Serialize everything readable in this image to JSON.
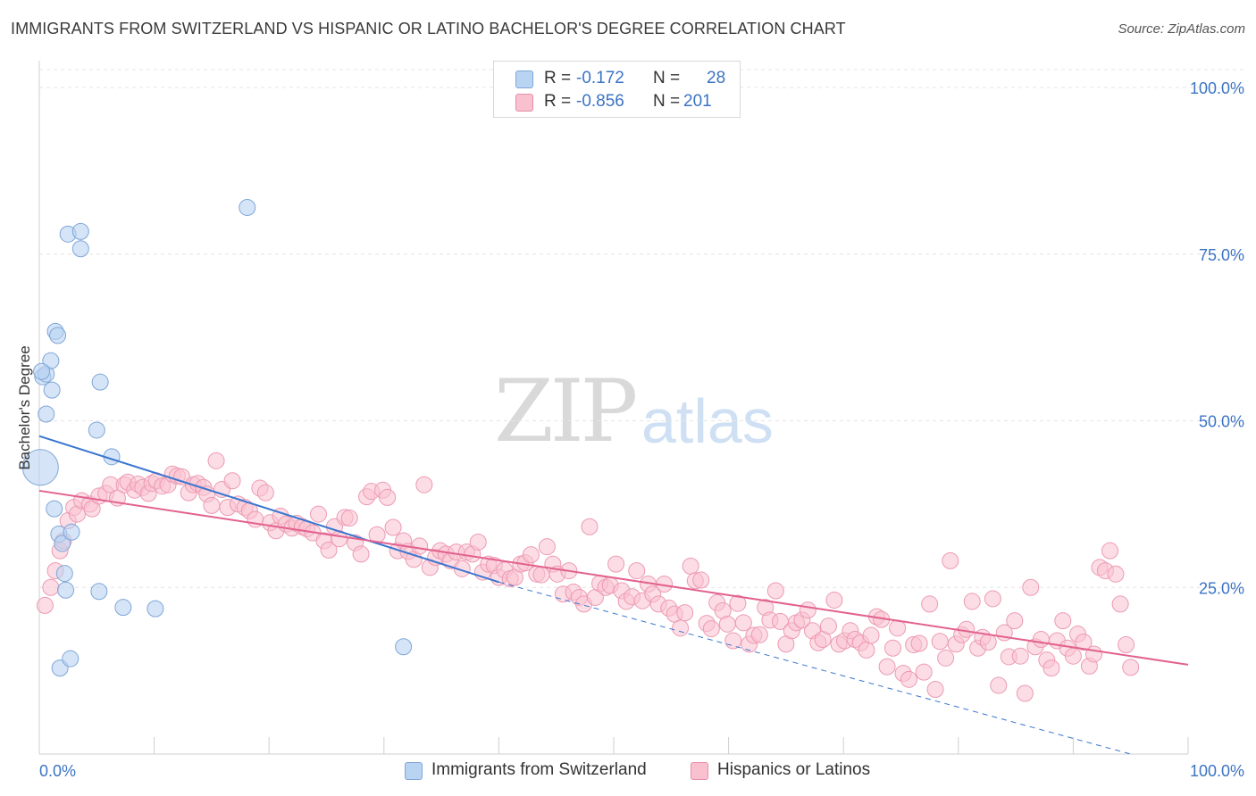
{
  "header": {
    "title": "IMMIGRANTS FROM SWITZERLAND VS HISPANIC OR LATINO BACHELOR'S DEGREE CORRELATION CHART",
    "source": "Source: ZipAtlas.com"
  },
  "watermark": {
    "zip": "ZIP",
    "atlas": "atlas"
  },
  "legend": {
    "rows": [
      {
        "r_label": "R =",
        "r_value": "-0.172",
        "n_label": "N =",
        "n_value": "28"
      },
      {
        "r_label": "R =",
        "r_value": "-0.856",
        "n_label": "N =",
        "n_value": "201"
      }
    ]
  },
  "bottom_legend": {
    "series1": "Immigrants from Switzerland",
    "series2": "Hispanics or Latinos"
  },
  "colors": {
    "blue_fill": "#b9d3f2",
    "blue_stroke": "#7fa6d8",
    "blue_line": "#3a76cf",
    "pink_fill": "#f9c1d0",
    "pink_stroke": "#ec9ab3",
    "pink_line": "#e2628f",
    "tick_label": "#3b74c4",
    "grid": "#e4e4e4"
  },
  "chart_data": {
    "type": "scatter",
    "title": "IMMIGRANTS FROM SWITZERLAND VS HISPANIC OR LATINO BACHELOR'S DEGREE CORRELATION CHART",
    "xlabel": "",
    "ylabel": "Bachelor's Degree",
    "xlim": [
      0,
      100
    ],
    "ylim": [
      0,
      100
    ],
    "x_tick_labels": [
      "0.0%",
      "100.0%"
    ],
    "y_ticks": [
      25,
      50,
      75,
      100
    ],
    "y_tick_labels": [
      "25.0%",
      "50.0%",
      "75.0%",
      "100.0%"
    ],
    "grid": true,
    "legend_position": "top-center",
    "series": [
      {
        "name": "Immigrants from Switzerland",
        "color": "#b9d3f2",
        "r": -0.172,
        "n": 28,
        "trend": {
          "x": [
            0,
            40
          ],
          "y": [
            47.7,
            25.8
          ],
          "extended_to": [
            95,
            0
          ]
        },
        "points": [
          [
            0.1,
            43.0
          ],
          [
            0.3,
            56.6
          ],
          [
            0.6,
            57.0
          ],
          [
            0.6,
            51.0
          ],
          [
            1.0,
            59.0
          ],
          [
            1.1,
            54.6
          ],
          [
            1.4,
            63.4
          ],
          [
            1.6,
            62.8
          ],
          [
            1.3,
            36.8
          ],
          [
            1.7,
            33.0
          ],
          [
            1.8,
            12.9
          ],
          [
            2.0,
            31.6
          ],
          [
            2.2,
            27.1
          ],
          [
            2.3,
            24.6
          ],
          [
            2.5,
            78.0
          ],
          [
            2.7,
            14.3
          ],
          [
            2.8,
            33.3
          ],
          [
            3.6,
            78.4
          ],
          [
            3.6,
            75.8
          ],
          [
            5.0,
            48.6
          ],
          [
            5.3,
            55.8
          ],
          [
            5.2,
            24.4
          ],
          [
            6.3,
            44.6
          ],
          [
            7.3,
            22.0
          ],
          [
            10.1,
            21.8
          ],
          [
            18.1,
            82.0
          ],
          [
            31.7,
            16.1
          ],
          [
            0.2,
            57.4
          ]
        ]
      },
      {
        "name": "Hispanics or Latinos",
        "color": "#f9c1d0",
        "r": -0.856,
        "n": 201,
        "trend": {
          "x": [
            0,
            100
          ],
          "y": [
            39.5,
            13.4
          ]
        },
        "points": [
          [
            0.5,
            22.3
          ],
          [
            1.0,
            25.0
          ],
          [
            1.4,
            27.5
          ],
          [
            1.8,
            30.5
          ],
          [
            2.1,
            32.0
          ],
          [
            2.5,
            35.0
          ],
          [
            3.0,
            37.0
          ],
          [
            3.3,
            36.0
          ],
          [
            3.7,
            38.0
          ],
          [
            4.4,
            37.5
          ],
          [
            4.6,
            36.8
          ],
          [
            5.2,
            38.7
          ],
          [
            5.8,
            39.1
          ],
          [
            6.2,
            40.4
          ],
          [
            6.8,
            38.4
          ],
          [
            7.4,
            40.4
          ],
          [
            7.7,
            40.8
          ],
          [
            8.3,
            39.6
          ],
          [
            8.6,
            40.5
          ],
          [
            9.0,
            40.0
          ],
          [
            9.5,
            39.1
          ],
          [
            9.8,
            40.6
          ],
          [
            10.2,
            41.0
          ],
          [
            10.7,
            40.2
          ],
          [
            11.2,
            40.4
          ],
          [
            11.6,
            42.0
          ],
          [
            12.0,
            41.7
          ],
          [
            12.4,
            41.6
          ],
          [
            13.0,
            39.2
          ],
          [
            13.4,
            40.4
          ],
          [
            13.8,
            40.6
          ],
          [
            14.3,
            40.0
          ],
          [
            14.6,
            39.0
          ],
          [
            15.0,
            37.3
          ],
          [
            15.4,
            44.0
          ],
          [
            15.9,
            39.7
          ],
          [
            16.4,
            37.0
          ],
          [
            16.8,
            41.0
          ],
          [
            17.3,
            37.5
          ],
          [
            17.9,
            37.0
          ],
          [
            18.3,
            36.5
          ],
          [
            18.8,
            35.2
          ],
          [
            19.2,
            39.9
          ],
          [
            19.7,
            39.2
          ],
          [
            20.1,
            34.7
          ],
          [
            20.6,
            33.5
          ],
          [
            21.0,
            35.7
          ],
          [
            21.5,
            34.5
          ],
          [
            22.0,
            33.9
          ],
          [
            22.4,
            34.6
          ],
          [
            22.9,
            34.1
          ],
          [
            23.3,
            33.8
          ],
          [
            23.8,
            33.2
          ],
          [
            24.3,
            36.0
          ],
          [
            24.8,
            32.0
          ],
          [
            25.2,
            30.6
          ],
          [
            25.7,
            34.1
          ],
          [
            26.1,
            32.3
          ],
          [
            26.6,
            35.5
          ],
          [
            27.0,
            35.4
          ],
          [
            27.5,
            31.7
          ],
          [
            28.0,
            30.0
          ],
          [
            28.5,
            38.6
          ],
          [
            28.9,
            39.4
          ],
          [
            29.4,
            32.9
          ],
          [
            29.9,
            39.6
          ],
          [
            30.3,
            38.5
          ],
          [
            30.8,
            34.0
          ],
          [
            31.2,
            30.5
          ],
          [
            31.7,
            32.0
          ],
          [
            32.1,
            30.4
          ],
          [
            32.6,
            29.2
          ],
          [
            33.1,
            31.2
          ],
          [
            33.5,
            40.4
          ],
          [
            34.0,
            28.0
          ],
          [
            34.5,
            29.5
          ],
          [
            34.9,
            30.5
          ],
          [
            35.4,
            30.0
          ],
          [
            35.8,
            29.0
          ],
          [
            36.3,
            30.3
          ],
          [
            36.8,
            27.8
          ],
          [
            37.2,
            30.3
          ],
          [
            37.7,
            30.0
          ],
          [
            38.2,
            31.8
          ],
          [
            38.6,
            27.3
          ],
          [
            39.1,
            28.5
          ],
          [
            39.6,
            28.3
          ],
          [
            40.0,
            26.5
          ],
          [
            40.5,
            27.6
          ],
          [
            41.0,
            26.3
          ],
          [
            41.4,
            26.5
          ],
          [
            41.9,
            28.5
          ],
          [
            42.3,
            28.7
          ],
          [
            42.8,
            29.9
          ],
          [
            43.3,
            27.0
          ],
          [
            43.7,
            26.9
          ],
          [
            44.2,
            31.1
          ],
          [
            44.7,
            28.5
          ],
          [
            45.1,
            27.0
          ],
          [
            45.6,
            24.0
          ],
          [
            46.1,
            27.5
          ],
          [
            46.5,
            24.3
          ],
          [
            47.0,
            23.5
          ],
          [
            47.4,
            22.5
          ],
          [
            47.9,
            34.1
          ],
          [
            48.4,
            23.5
          ],
          [
            48.8,
            25.6
          ],
          [
            49.3,
            25.0
          ],
          [
            49.7,
            25.3
          ],
          [
            50.2,
            28.5
          ],
          [
            50.7,
            24.5
          ],
          [
            51.1,
            22.9
          ],
          [
            51.6,
            23.6
          ],
          [
            52.0,
            27.5
          ],
          [
            52.5,
            23.0
          ],
          [
            53.0,
            25.5
          ],
          [
            53.4,
            24.0
          ],
          [
            53.9,
            22.5
          ],
          [
            54.4,
            25.5
          ],
          [
            54.8,
            21.9
          ],
          [
            55.3,
            21.0
          ],
          [
            55.8,
            18.9
          ],
          [
            56.2,
            21.2
          ],
          [
            56.7,
            28.2
          ],
          [
            57.1,
            26.0
          ],
          [
            57.6,
            26.1
          ],
          [
            58.1,
            19.6
          ],
          [
            58.5,
            18.8
          ],
          [
            59.0,
            22.7
          ],
          [
            59.5,
            21.5
          ],
          [
            59.9,
            19.5
          ],
          [
            60.4,
            17.0
          ],
          [
            60.8,
            22.6
          ],
          [
            61.3,
            19.7
          ],
          [
            61.8,
            16.5
          ],
          [
            62.2,
            17.8
          ],
          [
            62.7,
            17.9
          ],
          [
            63.2,
            22.0
          ],
          [
            63.6,
            20.1
          ],
          [
            64.1,
            24.5
          ],
          [
            64.5,
            19.9
          ],
          [
            65.0,
            16.5
          ],
          [
            65.5,
            18.5
          ],
          [
            65.9,
            19.7
          ],
          [
            66.4,
            20.1
          ],
          [
            66.9,
            21.6
          ],
          [
            67.3,
            18.5
          ],
          [
            67.8,
            16.7
          ],
          [
            68.2,
            17.2
          ],
          [
            68.7,
            19.2
          ],
          [
            69.2,
            23.1
          ],
          [
            69.6,
            16.5
          ],
          [
            70.1,
            17.0
          ],
          [
            70.6,
            18.5
          ],
          [
            71.0,
            17.2
          ],
          [
            71.5,
            16.7
          ],
          [
            72.0,
            15.6
          ],
          [
            72.4,
            17.8
          ],
          [
            72.9,
            20.6
          ],
          [
            73.3,
            20.2
          ],
          [
            73.8,
            13.1
          ],
          [
            74.3,
            15.9
          ],
          [
            74.7,
            18.9
          ],
          [
            75.2,
            12.1
          ],
          [
            75.7,
            11.2
          ],
          [
            76.1,
            16.4
          ],
          [
            76.6,
            16.6
          ],
          [
            77.0,
            12.3
          ],
          [
            77.5,
            22.5
          ],
          [
            78.0,
            9.7
          ],
          [
            78.4,
            16.9
          ],
          [
            78.9,
            14.4
          ],
          [
            79.3,
            29.0
          ],
          [
            79.8,
            16.5
          ],
          [
            80.3,
            17.9
          ],
          [
            80.7,
            18.7
          ],
          [
            81.2,
            22.9
          ],
          [
            81.7,
            15.9
          ],
          [
            82.1,
            17.5
          ],
          [
            82.6,
            16.8
          ],
          [
            83.0,
            23.3
          ],
          [
            83.5,
            10.3
          ],
          [
            84.0,
            18.2
          ],
          [
            84.4,
            14.6
          ],
          [
            84.9,
            20.0
          ],
          [
            85.4,
            14.7
          ],
          [
            85.8,
            9.1
          ],
          [
            86.3,
            25.0
          ],
          [
            86.7,
            16.1
          ],
          [
            87.2,
            17.2
          ],
          [
            87.7,
            14.1
          ],
          [
            88.1,
            12.9
          ],
          [
            88.6,
            17.0
          ],
          [
            89.1,
            20.0
          ],
          [
            89.5,
            15.9
          ],
          [
            90.0,
            14.7
          ],
          [
            90.4,
            18.0
          ],
          [
            90.9,
            16.8
          ],
          [
            91.4,
            13.2
          ],
          [
            91.8,
            15.0
          ],
          [
            92.3,
            28.0
          ],
          [
            92.8,
            27.5
          ],
          [
            93.2,
            30.5
          ],
          [
            93.7,
            27.0
          ],
          [
            94.1,
            22.5
          ],
          [
            94.6,
            16.4
          ],
          [
            95.0,
            13.0
          ]
        ]
      }
    ]
  }
}
